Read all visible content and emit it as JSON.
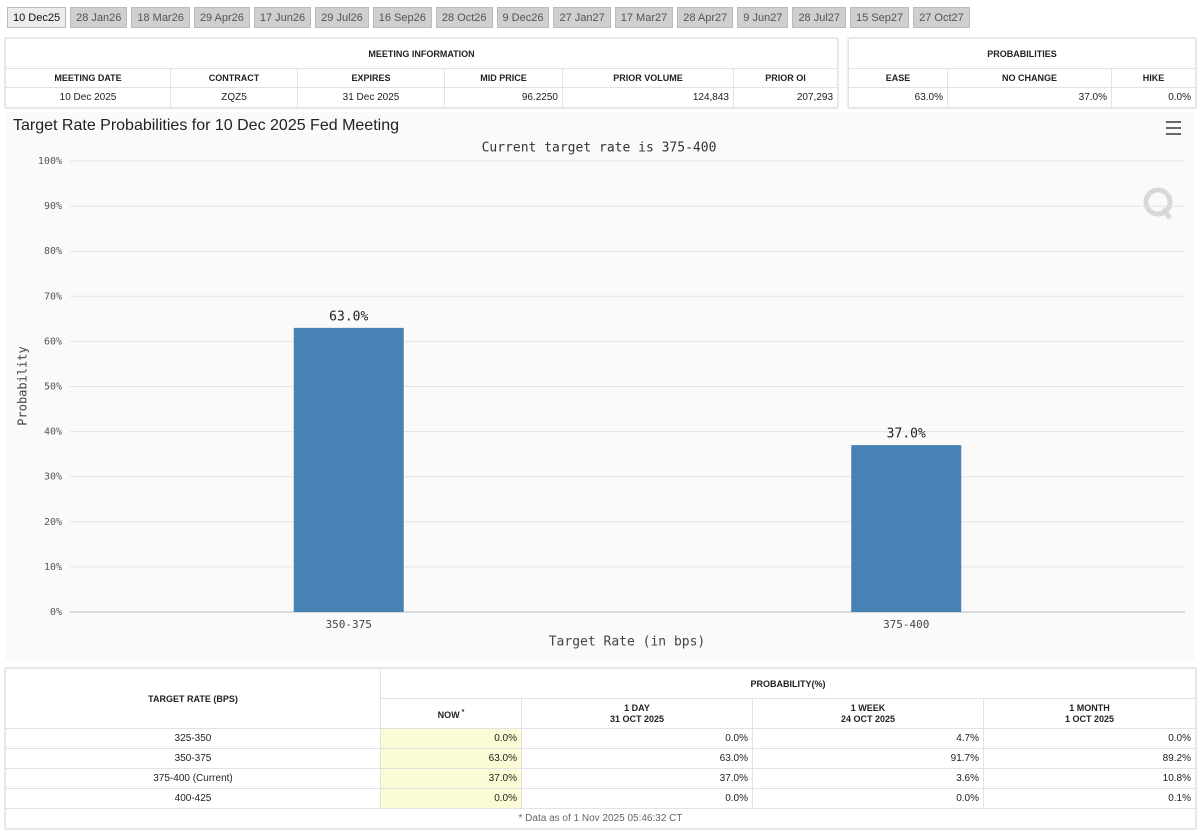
{
  "tabs": [
    "10 Dec25",
    "28 Jan26",
    "18 Mar26",
    "29 Apr26",
    "17 Jun26",
    "29 Jul26",
    "16 Sep26",
    "28 Oct26",
    "9 Dec26",
    "27 Jan27",
    "17 Mar27",
    "28 Apr27",
    "9 Jun27",
    "28 Jul27",
    "15 Sep27",
    "27 Oct27"
  ],
  "meeting_info": {
    "title": "MEETING INFORMATION",
    "headers": [
      "MEETING DATE",
      "CONTRACT",
      "EXPIRES",
      "MID PRICE",
      "PRIOR VOLUME",
      "PRIOR OI"
    ],
    "row": [
      "10 Dec 2025",
      "ZQZ5",
      "31 Dec 2025",
      "96.2250",
      "124,843",
      "207,293"
    ]
  },
  "probabilities": {
    "title": "PROBABILITIES",
    "headers": [
      "EASE",
      "NO CHANGE",
      "HIKE"
    ],
    "row": [
      "63.0%",
      "37.0%",
      "0.0%"
    ]
  },
  "chart_data": {
    "type": "bar",
    "title": "Target Rate Probabilities for 10 Dec 2025 Fed Meeting",
    "subtitle": "Current target rate is 375-400",
    "x_label": "Target Rate (in bps)",
    "y_label": "Probability",
    "categories": [
      "350-375",
      "375-400"
    ],
    "values": [
      63,
      37
    ],
    "value_labels": [
      "63.0%",
      "37.0%"
    ],
    "color": "#4682b4",
    "ylim": [
      0,
      100
    ],
    "yticks": [
      {
        "value": 0,
        "label": "0%"
      },
      {
        "value": 10,
        "label": "10%"
      },
      {
        "value": 20,
        "label": "20%"
      },
      {
        "value": 30,
        "label": "30%"
      },
      {
        "value": 40,
        "label": "40%"
      },
      {
        "value": 50,
        "label": "50%"
      },
      {
        "value": 60,
        "label": "60%"
      },
      {
        "value": 70,
        "label": "70%"
      },
      {
        "value": 80,
        "label": "80%"
      },
      {
        "value": 90,
        "label": "90%"
      },
      {
        "value": 100,
        "label": "100%"
      }
    ],
    "grid": true
  },
  "prob_table": {
    "row_header": "TARGET RATE (BPS)",
    "group_header": "PROBABILITY(%)",
    "columns": [
      {
        "label": "NOW",
        "note": "*"
      },
      {
        "label": "1 DAY",
        "date": "31 OCT 2025"
      },
      {
        "label": "1 WEEK",
        "date": "24 OCT 2025"
      },
      {
        "label": "1 MONTH",
        "date": "1 OCT 2025"
      }
    ],
    "rows": [
      [
        "325-350",
        "0.0%",
        "0.0%",
        "4.7%",
        "0.0%"
      ],
      [
        "350-375",
        "63.0%",
        "63.0%",
        "91.7%",
        "89.2%"
      ],
      [
        "375-400 (Current)",
        "37.0%",
        "37.0%",
        "3.6%",
        "10.8%"
      ],
      [
        "400-425",
        "0.0%",
        "0.0%",
        "0.0%",
        "0.1%"
      ]
    ],
    "footnote": "* Data as of 1 Nov 2025 05:46:32 CT"
  }
}
